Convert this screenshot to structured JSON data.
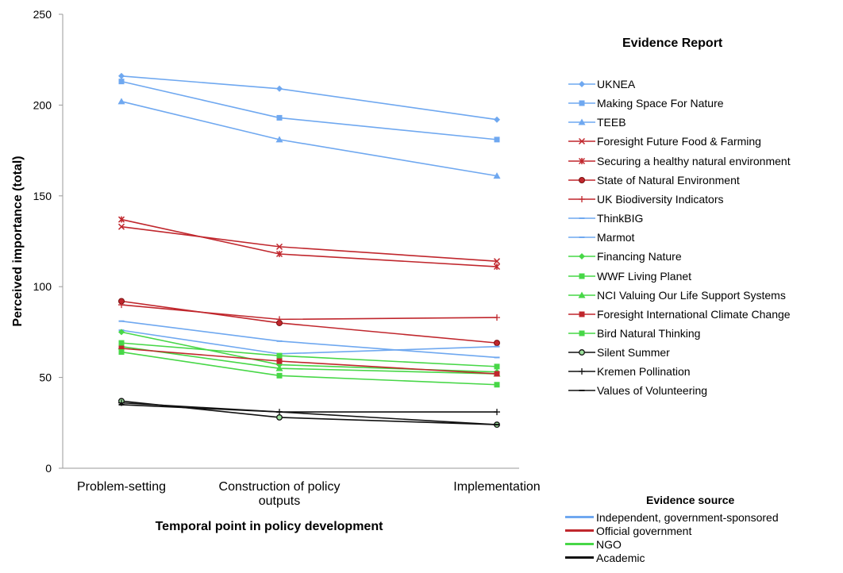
{
  "chart_data": {
    "type": "line",
    "title": "",
    "xlabel": "Temporal point in policy development",
    "ylabel": "Perceived importance (total)",
    "ylim": [
      0,
      250
    ],
    "yticks": [
      "0",
      "50",
      "100",
      "150",
      "200",
      "250"
    ],
    "categories": [
      "Problem-setting",
      "Construction of policy outputs",
      "Implementation"
    ],
    "legend_title": "Evidence Report",
    "legend_position": "right",
    "grid": false,
    "series": [
      {
        "name": "UKNEA",
        "values": [
          216,
          209,
          192
        ],
        "color": "#6fa8f0",
        "marker": "diamond"
      },
      {
        "name": "Making Space For Nature",
        "values": [
          213,
          193,
          181
        ],
        "color": "#6fa8f0",
        "marker": "square"
      },
      {
        "name": "TEEB",
        "values": [
          202,
          181,
          161
        ],
        "color": "#6fa8f0",
        "marker": "triangle"
      },
      {
        "name": "Foresight Future Food & Farming",
        "values": [
          133,
          122,
          114
        ],
        "color": "#c0272d",
        "marker": "x"
      },
      {
        "name": "Securing a healthy natural environment",
        "values": [
          137,
          118,
          111
        ],
        "color": "#c0272d",
        "marker": "star"
      },
      {
        "name": "State of Natural Environment",
        "values": [
          92,
          80,
          69
        ],
        "color": "#c0272d",
        "marker": "circle"
      },
      {
        "name": "UK Biodiversity Indicators",
        "values": [
          90,
          82,
          83
        ],
        "color": "#c0272d",
        "marker": "plus"
      },
      {
        "name": "ThinkBIG",
        "values": [
          81,
          70,
          61
        ],
        "color": "#6fa8f0",
        "marker": "dash"
      },
      {
        "name": "Marmot",
        "values": [
          76,
          63,
          67
        ],
        "color": "#6fa8f0",
        "marker": "dash"
      },
      {
        "name": "Financing Nature",
        "values": [
          75,
          57,
          53
        ],
        "color": "#47d747",
        "marker": "diamond"
      },
      {
        "name": "WWF Living Planet",
        "values": [
          69,
          62,
          56
        ],
        "color": "#47d747",
        "marker": "square"
      },
      {
        "name": "NCI Valuing Our Life Support Systems",
        "values": [
          67,
          55,
          52
        ],
        "color": "#47d747",
        "marker": "triangle"
      },
      {
        "name": "Foresight International Climate Change",
        "values": [
          66,
          59,
          52
        ],
        "color": "#c0272d",
        "marker": "square"
      },
      {
        "name": "Bird Natural Thinking",
        "values": [
          64,
          51,
          46
        ],
        "color": "#47d747",
        "marker": "square"
      },
      {
        "name": "Silent Summer",
        "values": [
          37,
          28,
          24
        ],
        "color": "#111111",
        "marker": "circle-open"
      },
      {
        "name": "Kremen Pollination",
        "values": [
          36,
          31,
          31
        ],
        "color": "#111111",
        "marker": "plus"
      },
      {
        "name": "Values of Volunteering",
        "values": [
          35,
          31,
          24
        ],
        "color": "#111111",
        "marker": "dash"
      }
    ],
    "source_legend": {
      "title": "Evidence source",
      "items": [
        {
          "name": "Independent, government-sponsored",
          "color": "#6fa8f0"
        },
        {
          "name": "Official government",
          "color": "#c0272d"
        },
        {
          "name": "NGO",
          "color": "#47d747"
        },
        {
          "name": "Academic",
          "color": "#111111"
        }
      ]
    }
  }
}
